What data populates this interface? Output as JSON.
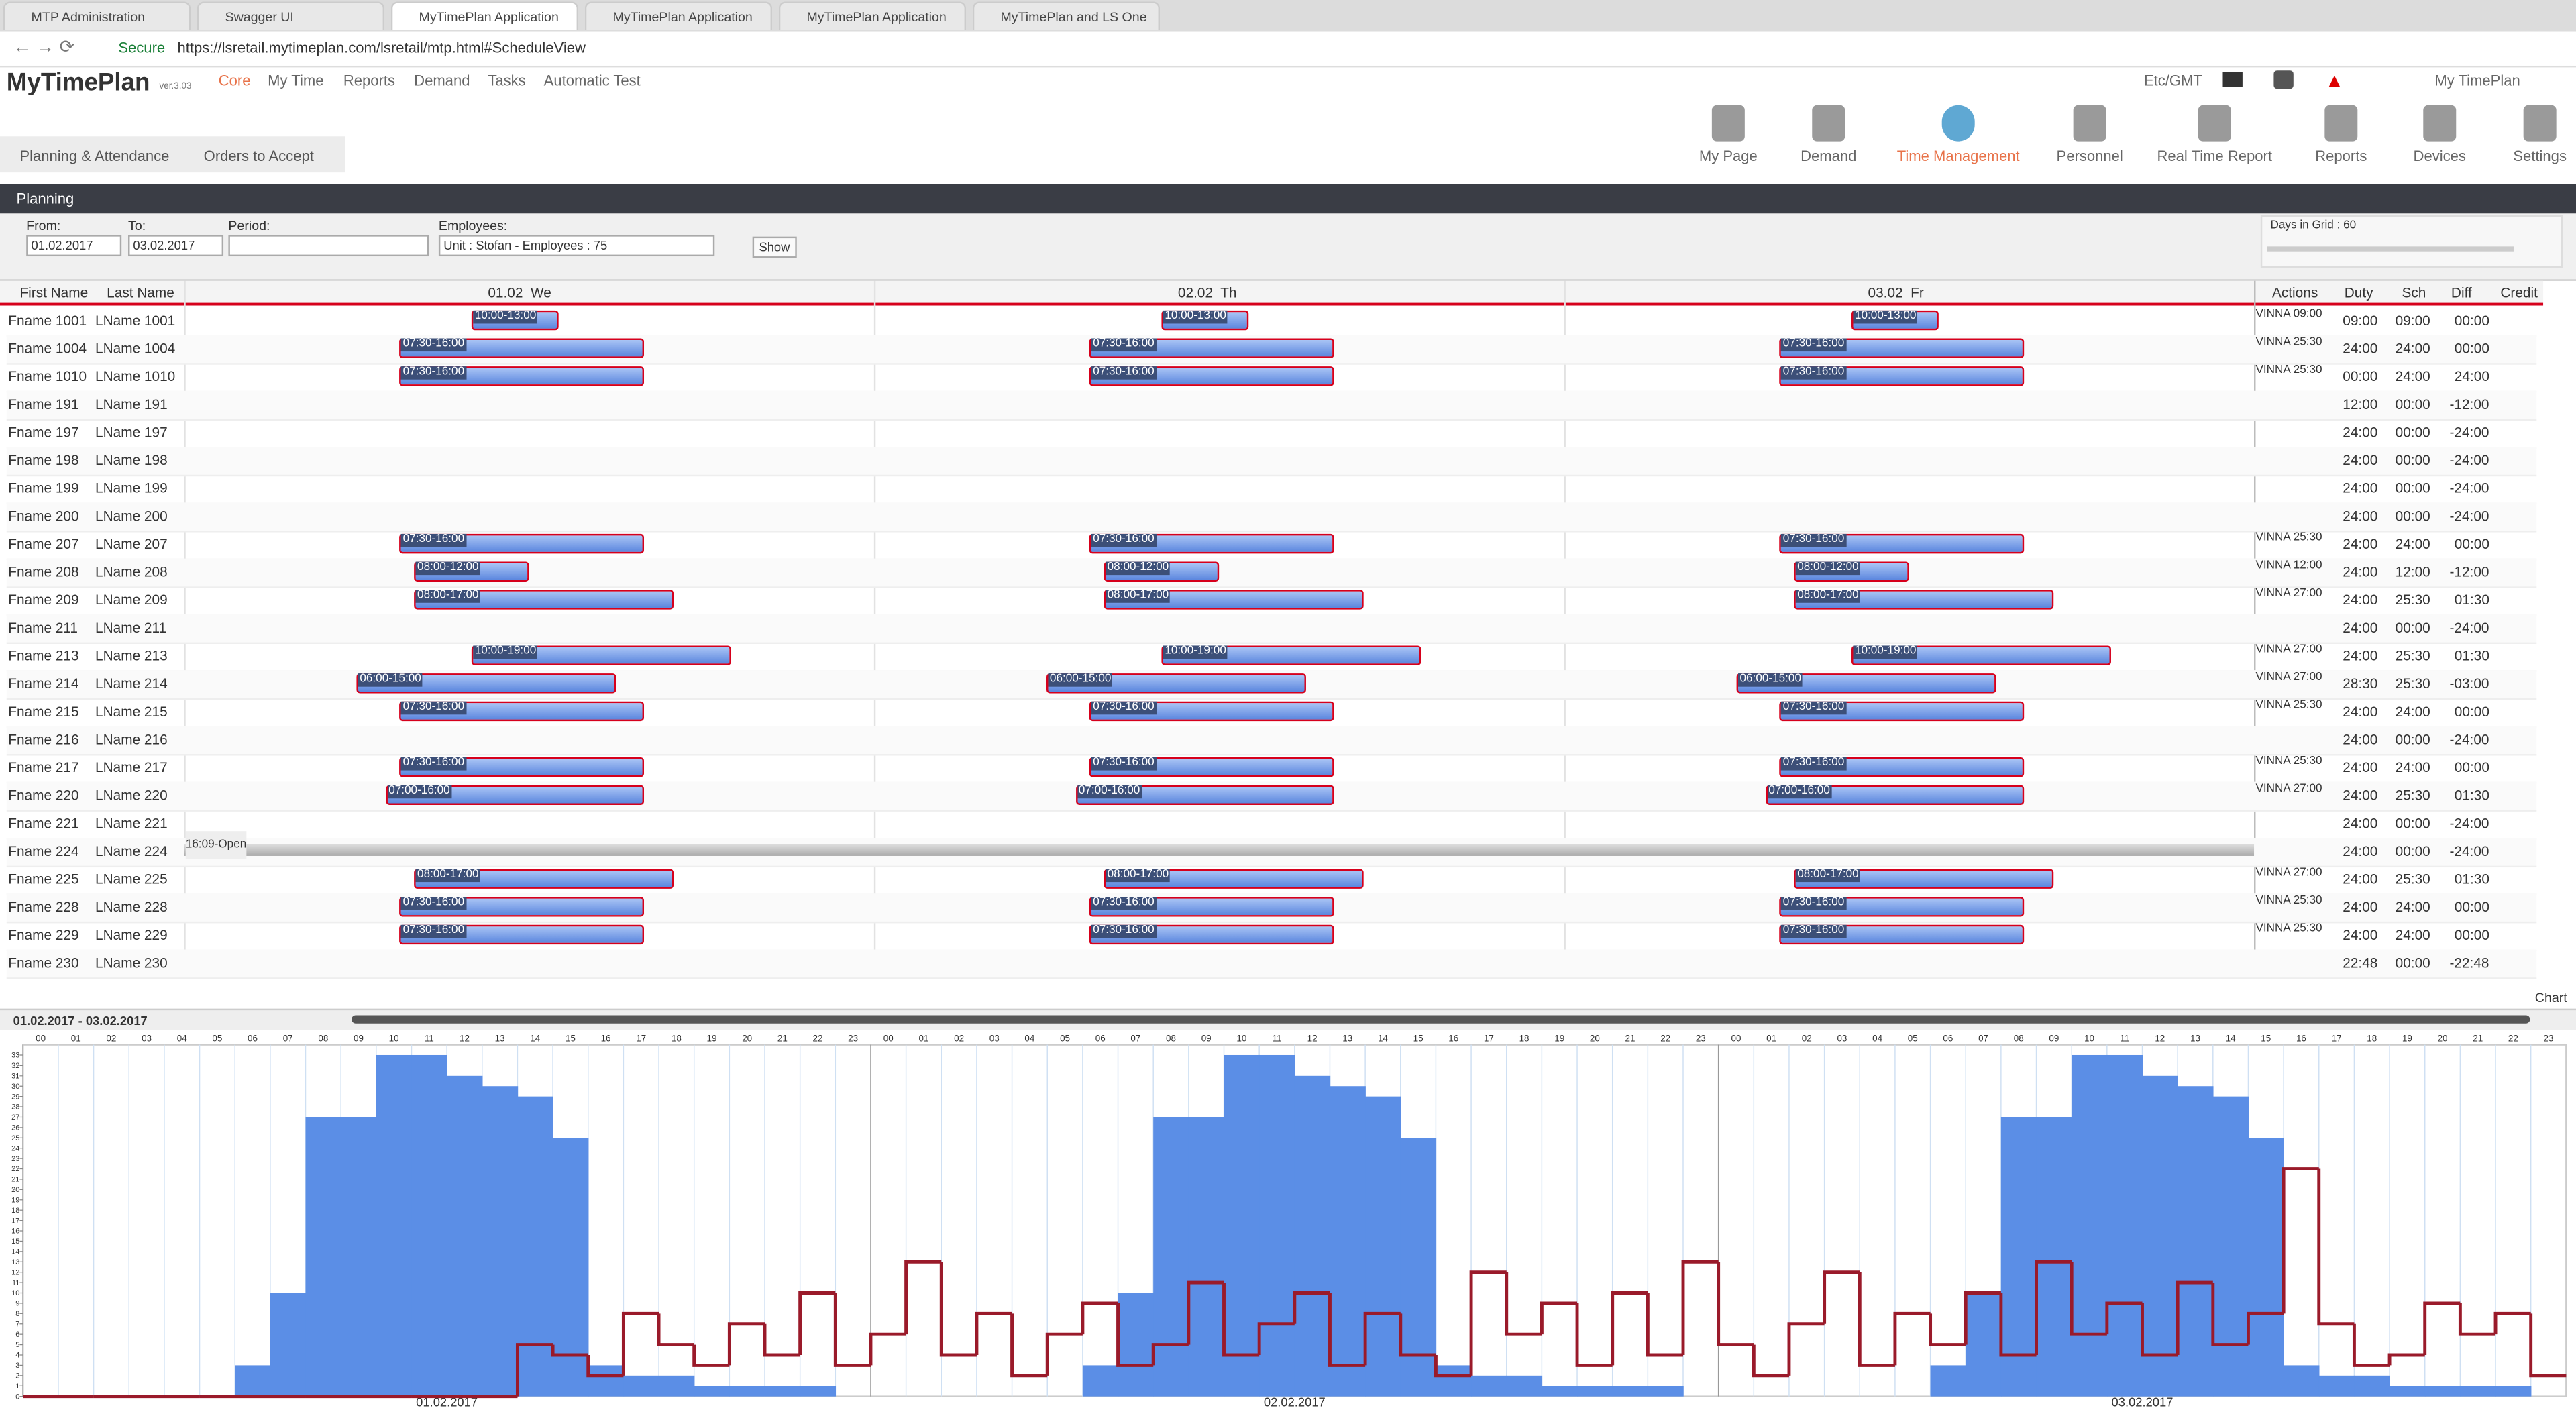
{
  "browser": {
    "tabs": [
      "MTP Administration",
      "Swagger UI",
      "MyTimePlan Application",
      "MyTimePlan Application",
      "MyTimePlan Application",
      "MyTimePlan and LS One"
    ],
    "secure": "Secure",
    "url": "https://lsretail.mytimeplan.com/lsretail/mtp.html#ScheduleView"
  },
  "app": {
    "logo": "MyTimePlan",
    "version": "ver.3.03",
    "nav": [
      "Core",
      "My Time",
      "Reports",
      "Demand",
      "Tasks",
      "Automatic Test"
    ],
    "timezone": "Etc/GMT",
    "user": "My TimePlan",
    "toolbar": [
      "My Page",
      "Demand",
      "Time Management",
      "Personnel",
      "Real Time Report",
      "Reports",
      "Devices",
      "Settings"
    ],
    "subtabs": [
      "Planning & Attendance",
      "Orders to Accept"
    ]
  },
  "planning": {
    "title": "Planning",
    "from_label": "From:",
    "from": "01.02.2017",
    "to_label": "To:",
    "to": "03.02.2017",
    "period_label": "Period:",
    "employees_label": "Employees:",
    "employees": "Unit : Stofan - Employees : 75",
    "show": "Show",
    "days_in_grid": "Days in Grid : 60",
    "headers": [
      "First Name",
      "Last Name"
    ],
    "days": [
      "01.02  We",
      "02.02  Th",
      "03.02  Fr"
    ],
    "right_headers": [
      "Actions",
      "Duty",
      "Sch",
      "Diff",
      "Credit"
    ],
    "rows": [
      {
        "first": "Fname 1001",
        "last": "LName 1001",
        "shift": "10:00-13:00",
        "action": "VINNA 09:00",
        "duty": "09:00",
        "sch": "09:00",
        "diff": "00:00"
      },
      {
        "first": "Fname 1004",
        "last": "LName 1004",
        "shift": "07:30-16:00",
        "action": "VINNA 25:30",
        "duty": "24:00",
        "sch": "24:00",
        "diff": "00:00"
      },
      {
        "first": "Fname 1010",
        "last": "LName 1010",
        "shift": "07:30-16:00",
        "action": "VINNA 25:30",
        "duty": "00:00",
        "sch": "24:00",
        "diff": "24:00"
      },
      {
        "first": "Fname 191",
        "last": "LName 191",
        "duty": "12:00",
        "sch": "00:00",
        "diff": "-12:00"
      },
      {
        "first": "Fname 197",
        "last": "LName 197",
        "duty": "24:00",
        "sch": "00:00",
        "diff": "-24:00"
      },
      {
        "first": "Fname 198",
        "last": "LName 198",
        "duty": "24:00",
        "sch": "00:00",
        "diff": "-24:00"
      },
      {
        "first": "Fname 199",
        "last": "LName 199",
        "duty": "24:00",
        "sch": "00:00",
        "diff": "-24:00"
      },
      {
        "first": "Fname 200",
        "last": "LName 200",
        "duty": "24:00",
        "sch": "00:00",
        "diff": "-24:00"
      },
      {
        "first": "Fname 207",
        "last": "LName 207",
        "shift": "07:30-16:00",
        "action": "VINNA 25:30",
        "duty": "24:00",
        "sch": "24:00",
        "diff": "00:00"
      },
      {
        "first": "Fname 208",
        "last": "LName 208",
        "shift": "08:00-12:00",
        "action": "VINNA 12:00",
        "duty": "24:00",
        "sch": "12:00",
        "diff": "-12:00"
      },
      {
        "first": "Fname 209",
        "last": "LName 209",
        "shift": "08:00-17:00",
        "action": "VINNA 27:00",
        "duty": "24:00",
        "sch": "25:30",
        "diff": "01:30"
      },
      {
        "first": "Fname 211",
        "last": "LName 211",
        "duty": "24:00",
        "sch": "00:00",
        "diff": "-24:00"
      },
      {
        "first": "Fname 213",
        "last": "LName 213",
        "shift": "10:00-19:00",
        "action": "VINNA 27:00",
        "duty": "24:00",
        "sch": "25:30",
        "diff": "01:30"
      },
      {
        "first": "Fname 214",
        "last": "LName 214",
        "shift": "06:00-15:00",
        "action": "VINNA 27:00",
        "duty": "28:30",
        "sch": "25:30",
        "diff": "-03:00"
      },
      {
        "first": "Fname 215",
        "last": "LName 215",
        "shift": "07:30-16:00",
        "action": "VINNA 25:30",
        "duty": "24:00",
        "sch": "24:00",
        "diff": "00:00"
      },
      {
        "first": "Fname 216",
        "last": "LName 216",
        "duty": "24:00",
        "sch": "00:00",
        "diff": "-24:00"
      },
      {
        "first": "Fname 217",
        "last": "LName 217",
        "shift": "07:30-16:00",
        "action": "VINNA 25:30",
        "duty": "24:00",
        "sch": "24:00",
        "diff": "00:00"
      },
      {
        "first": "Fname 220",
        "last": "LName 220",
        "shift": "07:00-16:00",
        "action": "VINNA 27:00",
        "duty": "24:00",
        "sch": "25:30",
        "diff": "01:30"
      },
      {
        "first": "Fname 221",
        "last": "LName 221",
        "duty": "24:00",
        "sch": "00:00",
        "diff": "-24:00"
      },
      {
        "first": "Fname 224",
        "last": "LName 224",
        "open": "16:09-Open",
        "duty": "24:00",
        "sch": "00:00",
        "diff": "-24:00"
      },
      {
        "first": "Fname 225",
        "last": "LName 225",
        "shift": "08:00-17:00",
        "action": "VINNA 27:00",
        "duty": "24:00",
        "sch": "25:30",
        "diff": "01:30"
      },
      {
        "first": "Fname 228",
        "last": "LName 228",
        "shift": "07:30-16:00",
        "action": "VINNA 25:30",
        "duty": "24:00",
        "sch": "24:00",
        "diff": "00:00"
      },
      {
        "first": "Fname 229",
        "last": "LName 229",
        "shift": "07:30-16:00",
        "action": "VINNA 25:30",
        "duty": "24:00",
        "sch": "24:00",
        "diff": "00:00"
      },
      {
        "first": "Fname 230",
        "last": "LName 230",
        "duty": "22:48",
        "sch": "00:00",
        "diff": "-22:48"
      }
    ]
  },
  "chart_data": {
    "type": "step",
    "title": "01.02.2017 - 03.02.2017",
    "toggle_label": "Chart",
    "categories": [
      "00",
      "01",
      "02",
      "03",
      "04",
      "05",
      "06",
      "07",
      "08",
      "09",
      "10",
      "11",
      "12",
      "13",
      "14",
      "15",
      "16",
      "17",
      "18",
      "19",
      "20",
      "21",
      "22",
      "23",
      "00",
      "01",
      "02",
      "03",
      "04",
      "05",
      "06",
      "07",
      "08",
      "09",
      "10",
      "11",
      "12",
      "13",
      "14",
      "15",
      "16",
      "17",
      "18",
      "19",
      "20",
      "21",
      "22",
      "23",
      "00",
      "01",
      "02",
      "03",
      "04",
      "05",
      "06",
      "07",
      "08",
      "09",
      "10",
      "11",
      "12",
      "13",
      "14",
      "15",
      "16",
      "17",
      "18",
      "19",
      "20",
      "21",
      "22",
      "23"
    ],
    "date_labels": [
      "01.02.2017",
      "02.02.2017",
      "03.02.2017"
    ],
    "ylim": [
      0,
      34
    ],
    "yticks": [
      0,
      1,
      2,
      3,
      4,
      5,
      6,
      7,
      8,
      9,
      10,
      11,
      12,
      13,
      14,
      15,
      16,
      17,
      18,
      19,
      20,
      21,
      22,
      23,
      24,
      25,
      26,
      27,
      28,
      29,
      30,
      31,
      32,
      33
    ],
    "series": [
      {
        "color": "#5b8ee6",
        "fill": true,
        "values": [
          0,
          0,
          0,
          0,
          0,
          0,
          3,
          10,
          27,
          27,
          33,
          33,
          31,
          30,
          29,
          25,
          3,
          2,
          2,
          1,
          1,
          1,
          1,
          0,
          0,
          0,
          0,
          0,
          0,
          0,
          3,
          10,
          27,
          27,
          33,
          33,
          31,
          30,
          29,
          25,
          3,
          2,
          2,
          1,
          1,
          1,
          1,
          0,
          0,
          0,
          0,
          0,
          0,
          0,
          3,
          10,
          27,
          27,
          33,
          33,
          31,
          30,
          29,
          25,
          3,
          2,
          2,
          1,
          1,
          1,
          1,
          0
        ]
      },
      {
        "color": "#9a1a2a",
        "fill": false,
        "values": [
          0,
          0,
          0,
          0,
          0,
          0,
          0,
          0,
          0,
          0,
          0,
          0,
          0,
          0,
          5,
          4,
          2,
          8,
          5,
          3,
          7,
          4,
          10,
          3,
          6,
          13,
          4,
          8,
          2,
          6,
          9,
          3,
          5,
          11,
          4,
          7,
          10,
          3,
          8,
          4,
          2,
          12,
          6,
          9,
          3,
          10,
          4,
          13,
          5,
          2,
          7,
          12,
          3,
          8,
          5,
          10,
          4,
          13,
          6,
          9,
          4,
          11,
          5,
          8,
          22,
          7,
          3,
          4,
          9,
          6,
          8,
          2
        ]
      }
    ]
  }
}
